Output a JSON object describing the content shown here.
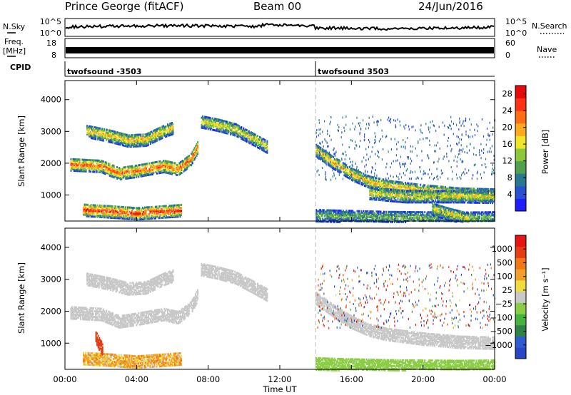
{
  "header": {
    "station": "Prince George (fitACF)",
    "beam": "Beam 00",
    "date": "24/Jun/2016"
  },
  "strip": {
    "nsky_label": "N.Sky",
    "nsky_ticks": [
      "10^5",
      "10^0"
    ],
    "nsearch_label": "N.Search",
    "nsearch_ticks": [
      "10^5",
      "10^0"
    ],
    "freq_label": "Freq.",
    "freq_unit": "[MHz]",
    "freq_ticks": [
      "18",
      "8"
    ],
    "nave_label": "Nave",
    "nave_ticks": [
      "60",
      "0"
    ],
    "cpid_label": "CPID",
    "cpid_segments": [
      {
        "name": "twofsound -3503",
        "start_hour": 0
      },
      {
        "name": "twofsound 3503",
        "start_hour": 14
      }
    ]
  },
  "chart_data": [
    {
      "type": "heatmap",
      "title": "",
      "xlabel": "",
      "ylabel": "Slant Range [km]",
      "x_ticks": [
        "00:00",
        "04:00",
        "08:00",
        "12:00",
        "16:00",
        "20:00",
        "00:00"
      ],
      "y_ticks": [
        "1000",
        "2000",
        "3000",
        "4000"
      ],
      "xlim_hours": [
        0,
        24
      ],
      "ylim_km": [
        180,
        4600
      ],
      "mode_change_hour": 14,
      "colorbar": {
        "label": "Power [dB]",
        "ticks": [
          "4",
          "8",
          "12",
          "16",
          "20",
          "24",
          "28"
        ],
        "range": [
          0,
          30
        ],
        "colors": [
          "#1e1eff",
          "#2850d2",
          "#287890",
          "#50a050",
          "#8cc83c",
          "#f0e628",
          "#ffaa1e",
          "#ff6e14",
          "#ff3214",
          "#e60a0a"
        ]
      },
      "bands": [
        {
          "points": [
            [
              0.3,
              2000
            ],
            [
              2,
              1950
            ],
            [
              3,
              1720
            ],
            [
              4,
              1800
            ],
            [
              5.5,
              1950
            ],
            [
              6.3,
              1850
            ],
            [
              7,
              2150
            ],
            [
              7.4,
              2550
            ]
          ],
          "power": 20
        },
        {
          "points": [
            [
              1.2,
              3050
            ],
            [
              2.5,
              2900
            ],
            [
              3.5,
              2750
            ],
            [
              4.5,
              2780
            ],
            [
              5.5,
              3050
            ],
            [
              6,
              3150
            ]
          ],
          "power": 16
        },
        {
          "points": [
            [
              1,
              570
            ],
            [
              2.5,
              520
            ],
            [
              4,
              460
            ],
            [
              5.5,
              520
            ],
            [
              6.5,
              560
            ]
          ],
          "power": 22
        },
        {
          "points": [
            [
              7.6,
              3350
            ],
            [
              8.5,
              3250
            ],
            [
              9.5,
              3100
            ],
            [
              10.5,
              2800
            ],
            [
              11.3,
              2550
            ]
          ],
          "power": 14
        },
        {
          "points": [
            [
              14,
              2450
            ],
            [
              15,
              2050
            ],
            [
              16,
              1700
            ],
            [
              17,
              1450
            ],
            [
              18,
              1320
            ],
            [
              20,
              1180
            ],
            [
              22,
              1080
            ],
            [
              24,
              1050
            ]
          ],
          "power": 16
        },
        {
          "points": [
            [
              17,
              1100
            ],
            [
              19,
              1000
            ],
            [
              22,
              1000
            ],
            [
              24,
              980
            ]
          ],
          "power": 14
        },
        {
          "points": [
            [
              14,
              400
            ],
            [
              18,
              340
            ],
            [
              22,
              320
            ],
            [
              24,
              330
            ]
          ],
          "power": 10
        },
        {
          "points": [
            [
              20.5,
              600
            ],
            [
              21.5,
              430
            ],
            [
              22.5,
              300
            ]
          ],
          "power": 14
        }
      ]
    },
    {
      "type": "heatmap",
      "title": "",
      "xlabel": "Time UT",
      "ylabel": "Slant Range [km]",
      "x_ticks": [
        "00:00",
        "04:00",
        "08:00",
        "12:00",
        "16:00",
        "20:00",
        "00:00"
      ],
      "y_ticks": [
        "1000",
        "2000",
        "3000",
        "4000"
      ],
      "xlim_hours": [
        0,
        24
      ],
      "ylim_km": [
        180,
        4600
      ],
      "mode_change_hour": 14,
      "colorbar": {
        "label": "Velocity [m s⁻¹]",
        "ticks": [
          "1000",
          "500",
          "100",
          "25",
          "−25",
          "−100",
          "−500",
          "−1000"
        ],
        "colors": [
          "#2846c8",
          "#2e5ad2",
          "#2d8246",
          "#46b43c",
          "#8ccd46",
          "#c8c8c8",
          "#f0dc3c",
          "#f0a028",
          "#f07814",
          "#e63c14",
          "#e61414"
        ]
      },
      "bands": [
        {
          "points": [
            [
              0.3,
              2000
            ],
            [
              2,
              1950
            ],
            [
              3,
              1720
            ],
            [
              4,
              1800
            ],
            [
              5.5,
              1950
            ],
            [
              6.3,
              1850
            ],
            [
              7,
              2150
            ],
            [
              7.4,
              2550
            ]
          ],
          "velocity": 0
        },
        {
          "points": [
            [
              1.2,
              3050
            ],
            [
              2.5,
              2900
            ],
            [
              3.5,
              2750
            ],
            [
              4.5,
              2780
            ],
            [
              5.5,
              3050
            ],
            [
              6,
              3150
            ]
          ],
          "velocity": 0
        },
        {
          "points": [
            [
              1,
              570
            ],
            [
              2.5,
              520
            ],
            [
              4,
              460
            ],
            [
              5.5,
              520
            ],
            [
              6.5,
              560
            ]
          ],
          "velocity": -150
        },
        {
          "points": [
            [
              1.7,
              1250
            ],
            [
              1.9,
              1000
            ],
            [
              2.1,
              850
            ]
          ],
          "velocity": -700
        },
        {
          "points": [
            [
              7.6,
              3350
            ],
            [
              8.5,
              3250
            ],
            [
              9.5,
              3100
            ],
            [
              10.5,
              2800
            ],
            [
              11.3,
              2550
            ]
          ],
          "velocity": 0
        },
        {
          "points": [
            [
              14,
              2450
            ],
            [
              15,
              2050
            ],
            [
              16,
              1700
            ],
            [
              17,
              1450
            ],
            [
              18,
              1320
            ],
            [
              20,
              1180
            ],
            [
              22,
              1080
            ],
            [
              24,
              1050
            ]
          ],
          "velocity": 0
        },
        {
          "points": [
            [
              14,
              400
            ],
            [
              18,
              340
            ],
            [
              22,
              320
            ],
            [
              24,
              330
            ]
          ],
          "velocity": 60
        }
      ]
    }
  ]
}
